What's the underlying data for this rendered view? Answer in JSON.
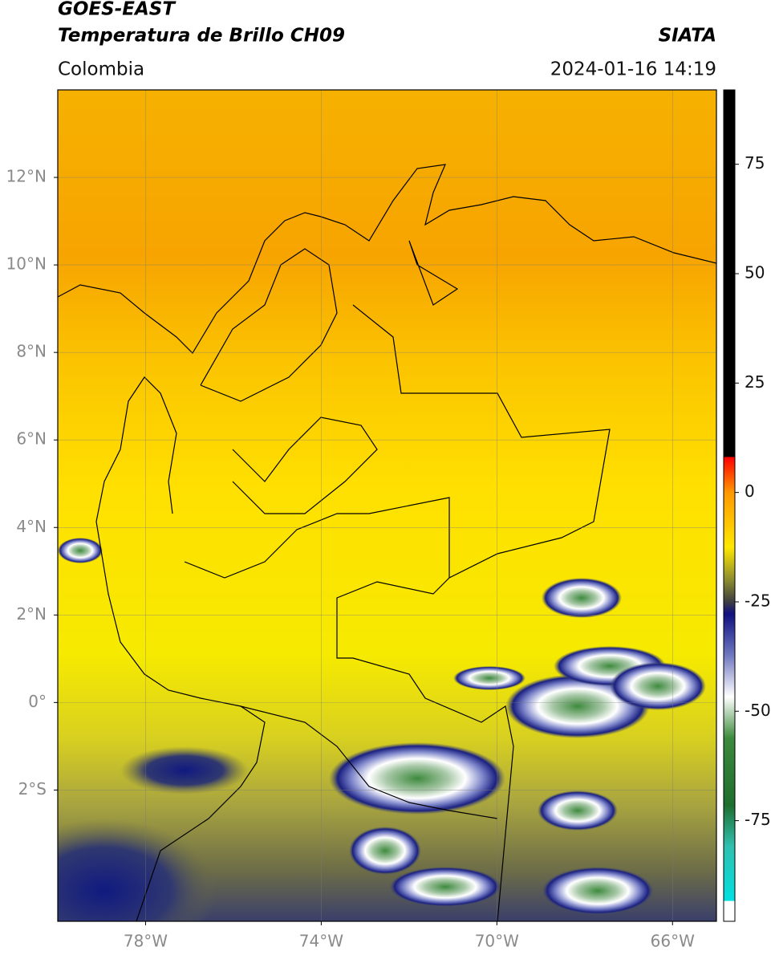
{
  "header": {
    "satellite": "GOES-EAST",
    "product": "Temperatura de Brillo CH09",
    "region": "Colombia",
    "source": "SIATA",
    "timestamp": "2024-01-16 14:19"
  },
  "map": {
    "lonlim": [
      -80,
      -65
    ],
    "latlim": [
      -5,
      14
    ],
    "lonticks": [
      {
        "value": -78,
        "label": "78°W"
      },
      {
        "value": -74,
        "label": "74°W"
      },
      {
        "value": -70,
        "label": "70°W"
      },
      {
        "value": -66,
        "label": "66°W"
      }
    ],
    "latticks": [
      {
        "value": 12,
        "label": "12°N"
      },
      {
        "value": 10,
        "label": "10°N"
      },
      {
        "value": 8,
        "label": "8°N"
      },
      {
        "value": 6,
        "label": "6°N"
      },
      {
        "value": 4,
        "label": "4°N"
      },
      {
        "value": 2,
        "label": "2°N"
      },
      {
        "value": 0,
        "label": "0°"
      },
      {
        "value": -2,
        "label": "2°S"
      }
    ],
    "grid": true
  },
  "colorbar": {
    "lim": [
      -98,
      92
    ],
    "ticks": [
      75,
      50,
      25,
      0,
      -25,
      -50,
      -75
    ]
  }
}
